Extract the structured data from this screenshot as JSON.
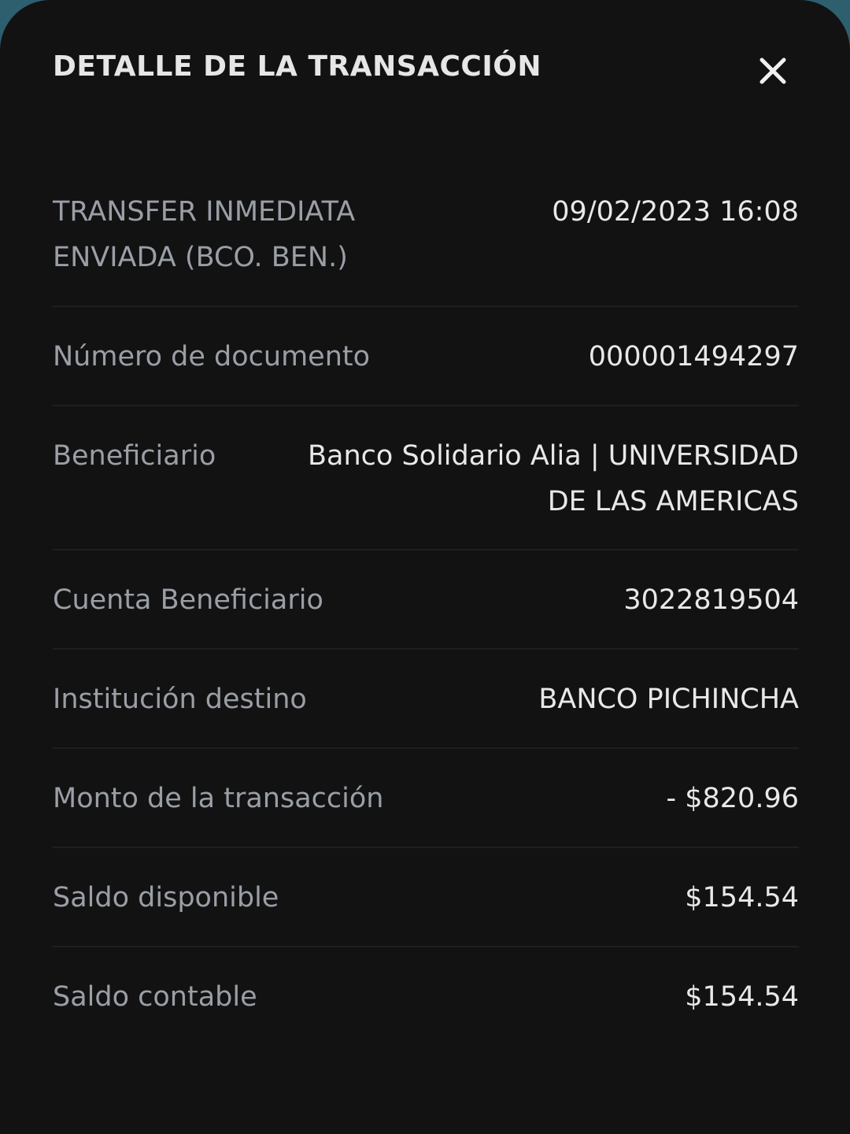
{
  "header": {
    "title": "DETALLE DE LA TRANSACCIÓN",
    "close_icon": "close-icon"
  },
  "rows": [
    {
      "label": "TRANSFER INMEDIATA ENVIADA (BCO. BEN.)",
      "value": "09/02/2023 16:08"
    },
    {
      "label": "Número de documento",
      "value": "000001494297"
    },
    {
      "label": "Beneficiario",
      "value": "Banco Solidario Alia | UNIVERSIDAD DE LAS AMERICAS"
    },
    {
      "label": "Cuenta Beneficiario",
      "value": "3022819504"
    },
    {
      "label": "Institución destino",
      "value": "BANCO PICHINCHA"
    },
    {
      "label": "Monto de la transacción",
      "value": "- $820.96"
    },
    {
      "label": "Saldo disponible",
      "value": "$154.54"
    },
    {
      "label": "Saldo contable",
      "value": "$154.54"
    }
  ]
}
